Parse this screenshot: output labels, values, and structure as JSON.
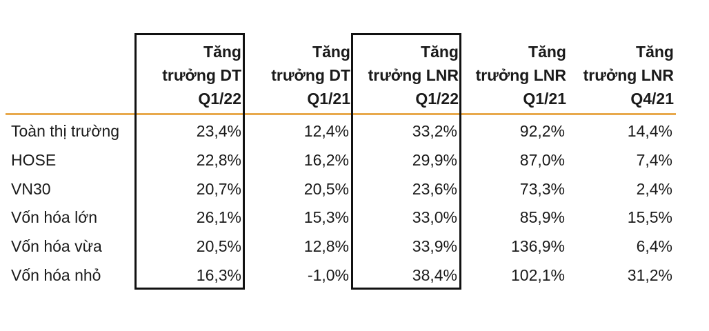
{
  "columns": [
    {
      "line1": "Tăng",
      "line2": "trưởng DT",
      "line3": "Q1/22",
      "highlighted": true
    },
    {
      "line1": "Tăng",
      "line2": "trưởng DT",
      "line3": "Q1/21",
      "highlighted": false
    },
    {
      "line1": "Tăng",
      "line2": "trưởng LNR",
      "line3": "Q1/22",
      "highlighted": true
    },
    {
      "line1": "Tăng",
      "line2": "trưởng LNR",
      "line3": "Q1/21",
      "highlighted": false
    },
    {
      "line1": "Tăng",
      "line2": "trưởng LNR",
      "line3": "Q4/21",
      "highlighted": false
    }
  ],
  "rows": [
    {
      "label": "Toàn thị trường",
      "values": [
        "23,4%",
        "12,4%",
        "33,2%",
        "92,2%",
        "14,4%"
      ]
    },
    {
      "label": "HOSE",
      "values": [
        "22,8%",
        "16,2%",
        "29,9%",
        "87,0%",
        "7,4%"
      ]
    },
    {
      "label": "VN30",
      "values": [
        "20,7%",
        "20,5%",
        "23,6%",
        "73,3%",
        "2,4%"
      ]
    },
    {
      "label": "Vốn hóa lớn",
      "values": [
        "26,1%",
        "15,3%",
        "33,0%",
        "85,9%",
        "15,5%"
      ]
    },
    {
      "label": "Vốn hóa vừa",
      "values": [
        "20,5%",
        "12,8%",
        "33,9%",
        "136,9%",
        "6,4%"
      ]
    },
    {
      "label": "Vốn hóa nhỏ",
      "values": [
        "16,3%",
        "-1,0%",
        "38,4%",
        "102,1%",
        "31,2%"
      ]
    }
  ],
  "colors": {
    "header_rule": "#e8a94c",
    "highlight_border": "#111111",
    "text": "#1a1a1a"
  }
}
